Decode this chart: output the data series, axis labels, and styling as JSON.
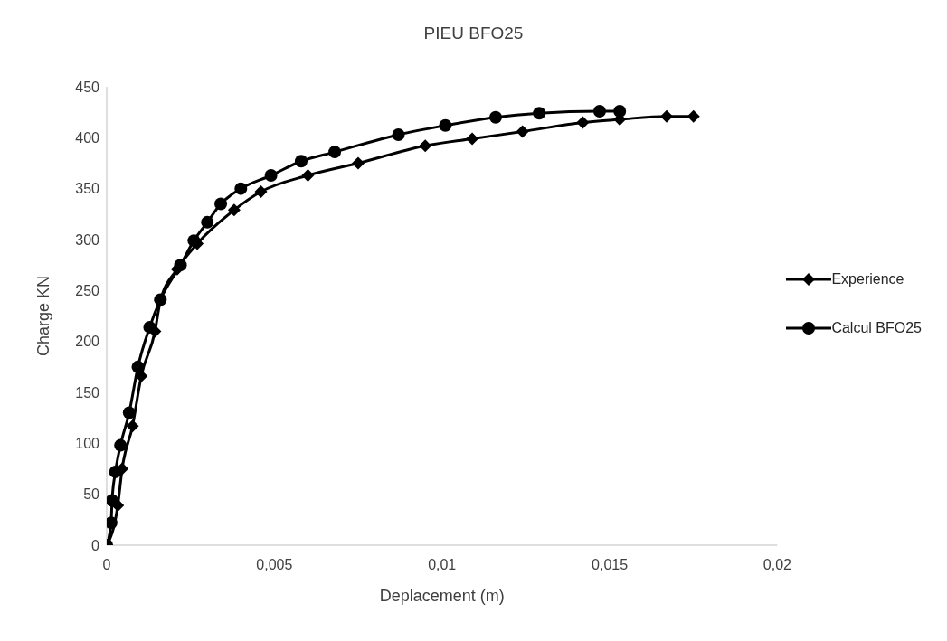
{
  "chart_data": {
    "type": "line",
    "title": "PIEU BFO25",
    "xlabel": "Deplacement (m)",
    "ylabel": "Charge KN",
    "xlim": [
      0,
      0.02
    ],
    "xticks": [
      0,
      {
        "value": 0.005,
        "label": "0,005"
      },
      {
        "value": 0.01,
        "label": "0,01"
      },
      {
        "value": 0.015,
        "label": "0,015"
      },
      {
        "value": 0.02,
        "label": "0,02"
      }
    ],
    "ylim": [
      0,
      450
    ],
    "yticks": [
      0,
      50,
      100,
      150,
      200,
      250,
      300,
      350,
      400,
      450
    ],
    "grid": false,
    "legend": "right",
    "line_style": "solid",
    "series": [
      {
        "name": "Experience",
        "color": "#000000",
        "marker": "diamond",
        "x": [
          0,
          0.00033,
          0.00046,
          0.00077,
          0.00103,
          0.00144,
          0.0016,
          0.0021,
          0.0027,
          0.0038,
          0.0046,
          0.006,
          0.0075,
          0.0095,
          0.0109,
          0.0124,
          0.0142,
          0.0153,
          0.0167,
          0.0175
        ],
        "values": [
          0,
          39,
          75,
          117,
          166,
          210,
          240,
          271,
          296,
          329,
          347,
          363,
          375,
          392,
          399,
          406,
          415,
          418,
          421,
          421
        ]
      },
      {
        "name": "Calcul BFO25",
        "color": "#000000",
        "marker": "circle",
        "x": [
          0,
          0.00013,
          0.00016,
          0.00026,
          0.00041,
          0.00067,
          0.00093,
          0.00128,
          0.0016,
          0.0022,
          0.0026,
          0.003,
          0.0034,
          0.004,
          0.0049,
          0.0058,
          0.0068,
          0.0087,
          0.0101,
          0.0116,
          0.0129,
          0.0147,
          0.0153
        ],
        "values": [
          0,
          22,
          44,
          72,
          98,
          130,
          175,
          214,
          241,
          275,
          299,
          317,
          335,
          350,
          363,
          377,
          386,
          403,
          412,
          420,
          424,
          426,
          426
        ]
      }
    ]
  }
}
